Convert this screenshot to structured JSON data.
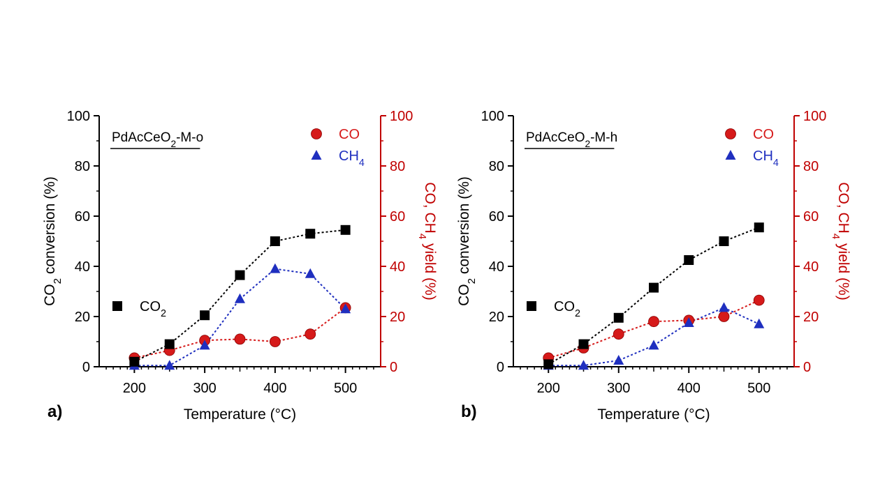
{
  "colors": {
    "co2": "#000000",
    "co": "#d61a1a",
    "ch4": "#1f2fbf",
    "yield_axis": "#c00000",
    "axis": "#000000"
  },
  "chart_data": [
    {
      "type": "line",
      "panel_label": "a)",
      "title": "PdAcCeO2-M-o",
      "xlabel": "Temperature (°C)",
      "ylabel": "CO2 conversion (%)",
      "y2label": "CO, CH4 yield (%)",
      "xlim": [
        150,
        550
      ],
      "ylim": [
        0,
        100
      ],
      "y2lim": [
        0,
        100
      ],
      "xticks": [
        200,
        300,
        400,
        500
      ],
      "yticks": [
        0,
        20,
        40,
        60,
        80,
        100
      ],
      "grid": false,
      "legend_co2": "top-left area",
      "x": [
        200,
        250,
        300,
        350,
        400,
        450,
        500
      ],
      "series": [
        {
          "name": "CO2",
          "axis": "left",
          "marker": "square",
          "color": "#000000",
          "values": [
            2,
            9,
            20.5,
            36.5,
            50,
            53,
            54.5
          ]
        },
        {
          "name": "CO",
          "axis": "right",
          "marker": "circle",
          "color": "#d61a1a",
          "values": [
            3.5,
            6.5,
            10.5,
            11,
            10,
            13,
            23.5
          ]
        },
        {
          "name": "CH4",
          "axis": "right",
          "marker": "triangle",
          "color": "#1f2fbf",
          "values": [
            0.5,
            0.5,
            8.5,
            27,
            39,
            37,
            23
          ]
        }
      ]
    },
    {
      "type": "line",
      "panel_label": "b)",
      "title": "PdAcCeO2-M-h",
      "xlabel": "Temperature (°C)",
      "ylabel": "CO2 conversion (%)",
      "y2label": "CO, CH4 yield (%)",
      "xlim": [
        150,
        550
      ],
      "ylim": [
        0,
        100
      ],
      "y2lim": [
        0,
        100
      ],
      "xticks": [
        200,
        300,
        400,
        500
      ],
      "yticks": [
        0,
        20,
        40,
        60,
        80,
        100
      ],
      "grid": false,
      "x": [
        200,
        250,
        300,
        350,
        400,
        450,
        500
      ],
      "series": [
        {
          "name": "CO2",
          "axis": "left",
          "marker": "square",
          "color": "#000000",
          "values": [
            1,
            9,
            19.5,
            31.5,
            42.5,
            50,
            55.5
          ]
        },
        {
          "name": "CO",
          "axis": "right",
          "marker": "circle",
          "color": "#d61a1a",
          "values": [
            3.5,
            7.5,
            13,
            18,
            18.5,
            20,
            26.5
          ]
        },
        {
          "name": "CH4",
          "axis": "right",
          "marker": "triangle",
          "color": "#1f2fbf",
          "values": [
            0.5,
            0.5,
            2.5,
            8.5,
            17.5,
            23.5,
            17
          ]
        }
      ]
    }
  ]
}
